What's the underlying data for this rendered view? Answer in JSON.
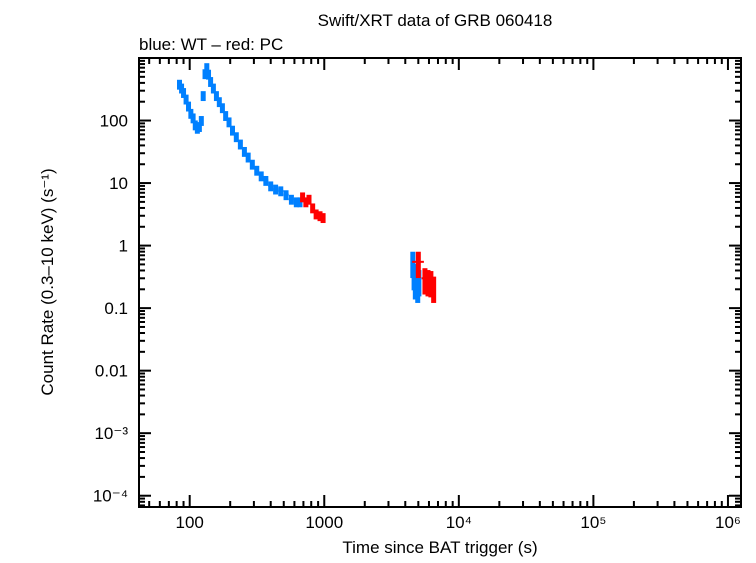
{
  "chart_data": {
    "type": "scatter",
    "title": "Swift/XRT data of GRB 060418",
    "subtitle": "blue: WT – red: PC",
    "xlabel": "Time since BAT trigger (s)",
    "ylabel": "Count Rate (0.3–10 keV) (s⁻¹)",
    "xscale": "log",
    "yscale": "log",
    "xlim": [
      42,
      1250000
    ],
    "ylim": [
      6.6e-05,
      1000
    ],
    "grid": false,
    "x_ticks": [
      {
        "value": 100,
        "label": "100"
      },
      {
        "value": 1000,
        "label": "1000"
      },
      {
        "value": 10000,
        "label": "10⁴"
      },
      {
        "value": 100000,
        "label": "10⁵"
      },
      {
        "value": 1000000,
        "label": "10⁶"
      }
    ],
    "y_ticks": [
      {
        "value": 100,
        "label": "100"
      },
      {
        "value": 10,
        "label": "10"
      },
      {
        "value": 1,
        "label": "1"
      },
      {
        "value": 0.1,
        "label": "0.1"
      },
      {
        "value": 0.01,
        "label": "0.01"
      },
      {
        "value": 0.001,
        "label": "10⁻³"
      },
      {
        "value": 0.0001,
        "label": "10⁻⁴"
      }
    ],
    "series": [
      {
        "mode": "WT",
        "color": "#0080ff",
        "points": [
          [
            84,
            380
          ],
          [
            87,
            330
          ],
          [
            90,
            280
          ],
          [
            94,
            220
          ],
          [
            98,
            170
          ],
          [
            102,
            130
          ],
          [
            106,
            110
          ],
          [
            110,
            85
          ],
          [
            114,
            75
          ],
          [
            118,
            80
          ],
          [
            122,
            100
          ],
          [
            126,
            250
          ],
          [
            130,
            560
          ],
          [
            134,
            700
          ],
          [
            138,
            550
          ],
          [
            143,
            420
          ],
          [
            150,
            330
          ],
          [
            158,
            250
          ],
          [
            166,
            200
          ],
          [
            175,
            160
          ],
          [
            185,
            120
          ],
          [
            196,
            95
          ],
          [
            208,
            70
          ],
          [
            222,
            55
          ],
          [
            238,
            42
          ],
          [
            255,
            32
          ],
          [
            272,
            26
          ],
          [
            292,
            20
          ],
          [
            315,
            16
          ],
          [
            340,
            13
          ],
          [
            368,
            11
          ],
          [
            400,
            9
          ],
          [
            435,
            8
          ],
          [
            475,
            7.5
          ],
          [
            520,
            6.5
          ],
          [
            570,
            5.5
          ],
          [
            620,
            5
          ],
          [
            660,
            5
          ],
          [
            4550,
            0.55
          ],
          [
            4650,
            0.35
          ],
          [
            4750,
            0.25
          ],
          [
            4850,
            0.3
          ],
          [
            4950,
            0.22
          ],
          [
            5050,
            0.28
          ]
        ]
      },
      {
        "mode": "PC",
        "color": "#ff0000",
        "points": [
          [
            690,
            6
          ],
          [
            730,
            5
          ],
          [
            770,
            5.5
          ],
          [
            820,
            4
          ],
          [
            870,
            3.2
          ],
          [
            930,
            3.0
          ],
          [
            980,
            2.8
          ],
          [
            5000,
            0.55
          ],
          [
            5600,
            0.3
          ],
          [
            5900,
            0.28
          ],
          [
            6200,
            0.27
          ],
          [
            6500,
            0.22
          ]
        ]
      }
    ]
  }
}
